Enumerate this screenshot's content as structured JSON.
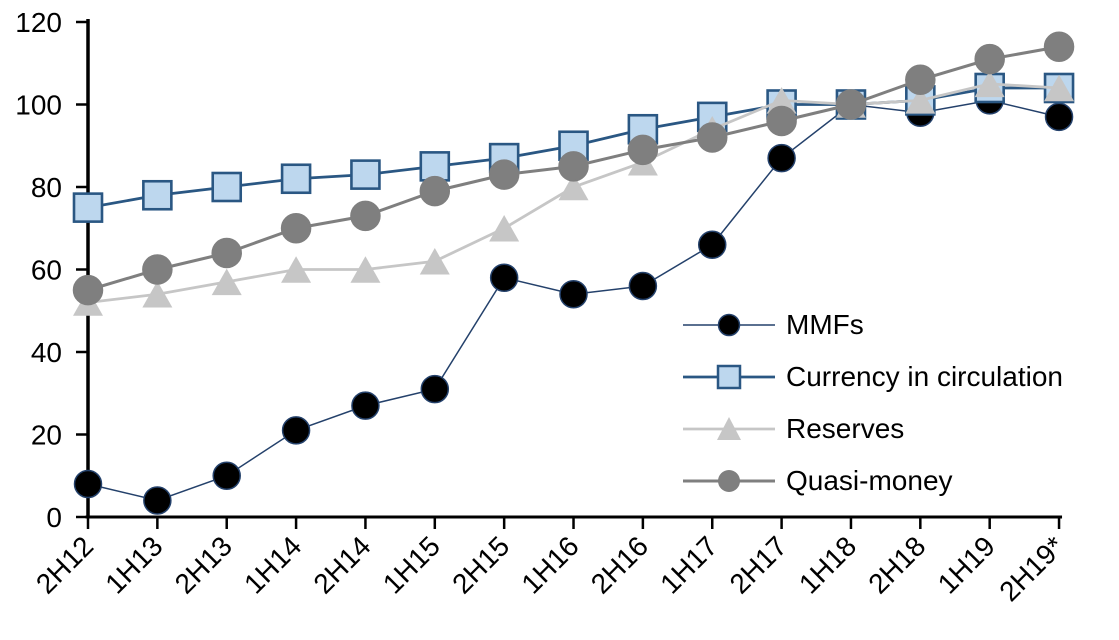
{
  "chart_data": {
    "type": "line",
    "title": "",
    "xlabel": "",
    "ylabel": "",
    "categories": [
      "2H12",
      "1H13",
      "2H13",
      "1H14",
      "2H14",
      "1H15",
      "2H15",
      "1H16",
      "2H16",
      "1H17",
      "2H17",
      "1H18",
      "2H18",
      "1H19",
      "2H19*"
    ],
    "y_ticks": [
      0,
      20,
      40,
      60,
      80,
      100,
      120
    ],
    "ylim": [
      0,
      120
    ],
    "x_label_rotation": -45,
    "grid": false,
    "legend_position": "inside-right",
    "axis_color": "#000000",
    "series": [
      {
        "name": "MMFs",
        "marker": "circle",
        "marker_size": 27,
        "marker_fill": "#000000",
        "marker_stroke": "#24416b",
        "line_color": "#24416b",
        "line_width": 1.5,
        "values": [
          8,
          4,
          10,
          21,
          27,
          31,
          58,
          54,
          56,
          66,
          87,
          100,
          98,
          101,
          97
        ]
      },
      {
        "name": "Currency in circulation",
        "marker": "square",
        "marker_size": 28,
        "marker_fill": "#bdd7ee",
        "marker_stroke": "#2a5783",
        "line_color": "#2a5783",
        "line_width": 2.8,
        "values": [
          75,
          78,
          80,
          82,
          83,
          85,
          87,
          90,
          94,
          97,
          100,
          100,
          101,
          104,
          104
        ]
      },
      {
        "name": "Reserves",
        "marker": "triangle",
        "marker_size": 30,
        "marker_fill": "#c6c6c6",
        "marker_stroke": "#c6c6c6",
        "line_color": "#c6c6c6",
        "line_width": 2.8,
        "values": [
          52,
          54,
          57,
          60,
          60,
          62,
          70,
          80,
          86,
          94,
          101,
          100,
          101,
          105,
          104
        ]
      },
      {
        "name": "Quasi-money",
        "marker": "circle",
        "marker_size": 29,
        "marker_fill": "#7f7f7f",
        "marker_stroke": "#7f7f7f",
        "line_color": "#7f7f7f",
        "line_width": 3,
        "values": [
          55,
          60,
          64,
          70,
          73,
          79,
          83,
          85,
          89,
          92,
          96,
          100,
          106,
          111,
          114
        ]
      }
    ]
  }
}
